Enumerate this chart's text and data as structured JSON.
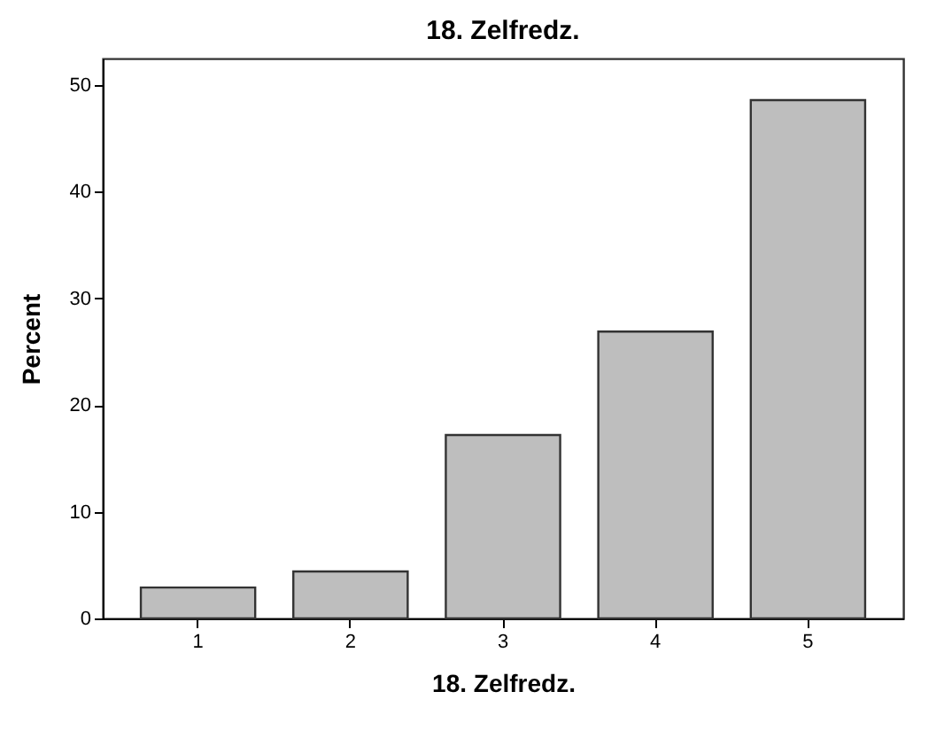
{
  "chart_data": {
    "type": "bar",
    "title": "18. Zelfredz.",
    "xlabel": "18. Zelfredz.",
    "ylabel": "Percent",
    "categories": [
      "1",
      "2",
      "3",
      "4",
      "5"
    ],
    "values": [
      2.9,
      4.4,
      17.2,
      26.9,
      48.6
    ],
    "color": "#bebebe",
    "ylim": [
      0,
      52.5
    ],
    "yticks": [
      0,
      10,
      20,
      30,
      40,
      50
    ],
    "grid": false
  }
}
